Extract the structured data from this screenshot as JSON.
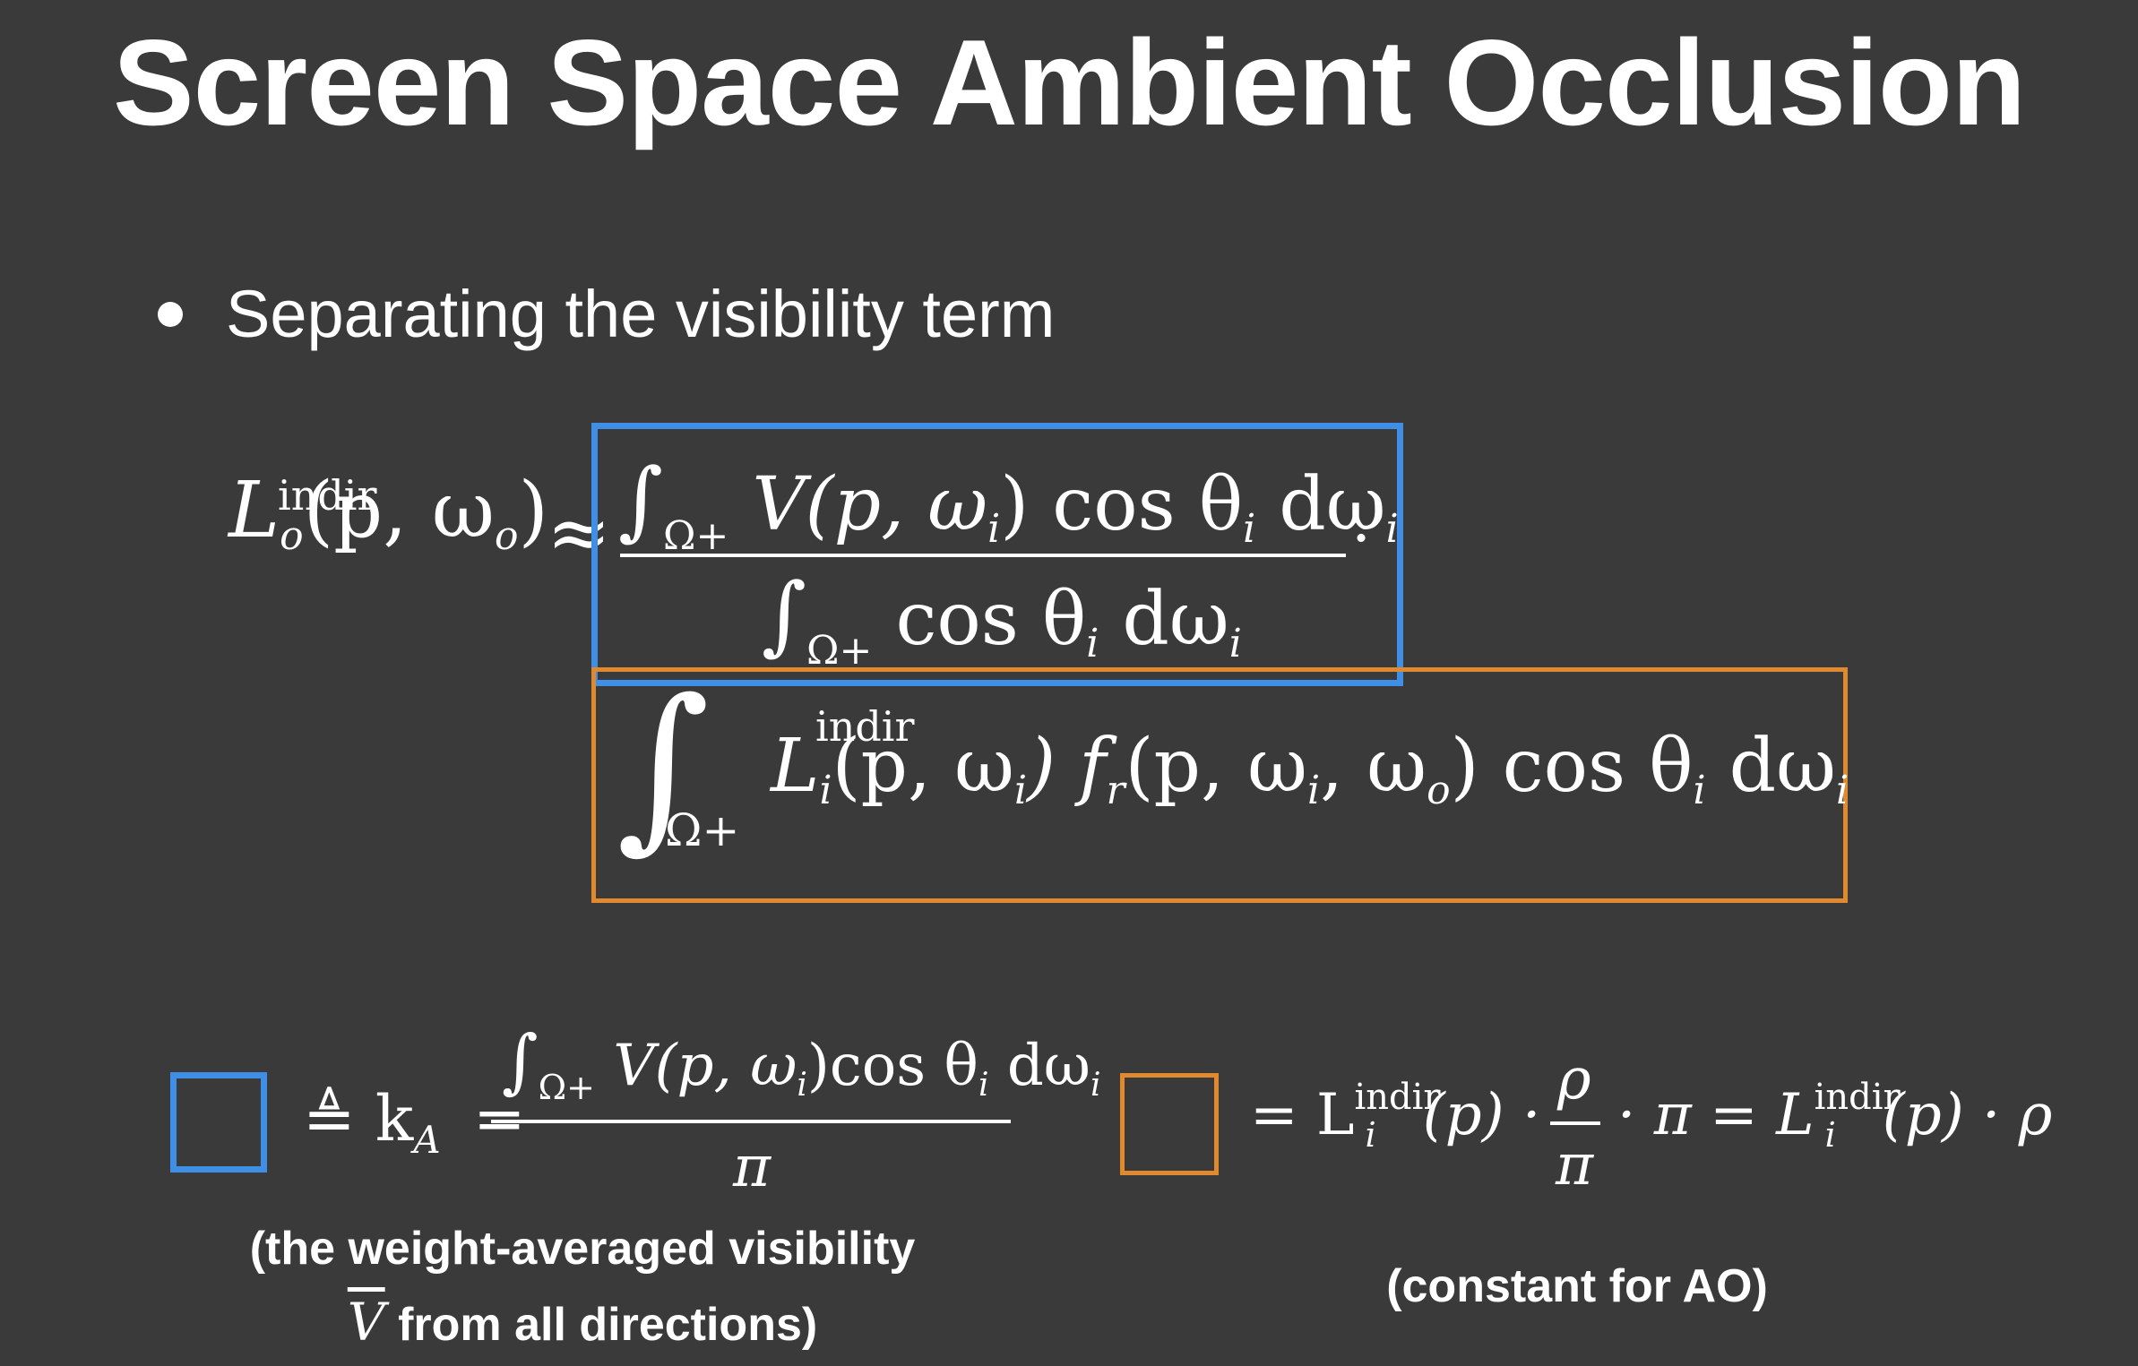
{
  "slide": {
    "title": "Screen Space Ambient Occlusion",
    "bullet": "Separating the visibility term"
  },
  "equation_main": {
    "lhs_sup": "indir",
    "lhs_L": "L",
    "lhs_sub": "o",
    "lhs_args": "(p, ω",
    "lhs_args_sub": "o",
    "lhs_close": ")",
    "approx": "≈",
    "blue_numerator": "∫",
    "blue_num_domain": "Ω+",
    "blue_num_body": "V(p, ω",
    "blue_num_sub1": "i",
    "blue_num_body2": ") cos θ",
    "blue_num_sub2": "i",
    "blue_num_body3": " dω",
    "blue_num_sub3": "i",
    "blue_denominator": "∫",
    "blue_den_domain": "Ω+",
    "blue_den_body": "cos θ",
    "blue_den_sub1": "i",
    "blue_den_body2": " dω",
    "blue_den_sub2": "i",
    "dot": "·",
    "orange_integral": "∫",
    "orange_domain": "Ω+",
    "orange_sup": "indir",
    "orange_L": "L",
    "orange_sub": "i",
    "orange_body": "(p, ω",
    "orange_sub2": "i",
    "orange_body2": ") f",
    "orange_sub3": "r",
    "orange_body3": "(p, ω",
    "orange_sub4": "i",
    "orange_body4": ", ω",
    "orange_sub5": "o",
    "orange_body5": ") cos θ",
    "orange_sub6": "i",
    "orange_body6": " dω",
    "orange_sub7": "i"
  },
  "legend_blue": {
    "def": "≜ k",
    "def_sub": "A",
    "eq": "=",
    "num_int": "∫",
    "num_domain": "Ω+",
    "num_body": "V(p, ω",
    "num_sub1": "i",
    "num_body2": ")cos θ",
    "num_sub2": "i",
    "num_body3": " dω",
    "num_sub3": "i",
    "den": "π",
    "caption_line1": "(the weight-averaged visibility",
    "caption_vbar": "V",
    "caption_line2": " from all directions)"
  },
  "legend_orange": {
    "eq1": "= L",
    "sup1": "indir",
    "sub1": "i",
    "arg1": "(p) ·",
    "frac_num": "ρ",
    "frac_den": "π",
    "mid": "· π = L",
    "sup2": "indir",
    "sub2": "i",
    "arg2": "(p) · ρ",
    "caption": "(constant for AO)"
  },
  "colors": {
    "background": "#3a3a3a",
    "blue_box": "#3f8fe6",
    "orange_box": "#e0892e",
    "text": "#ffffff"
  }
}
